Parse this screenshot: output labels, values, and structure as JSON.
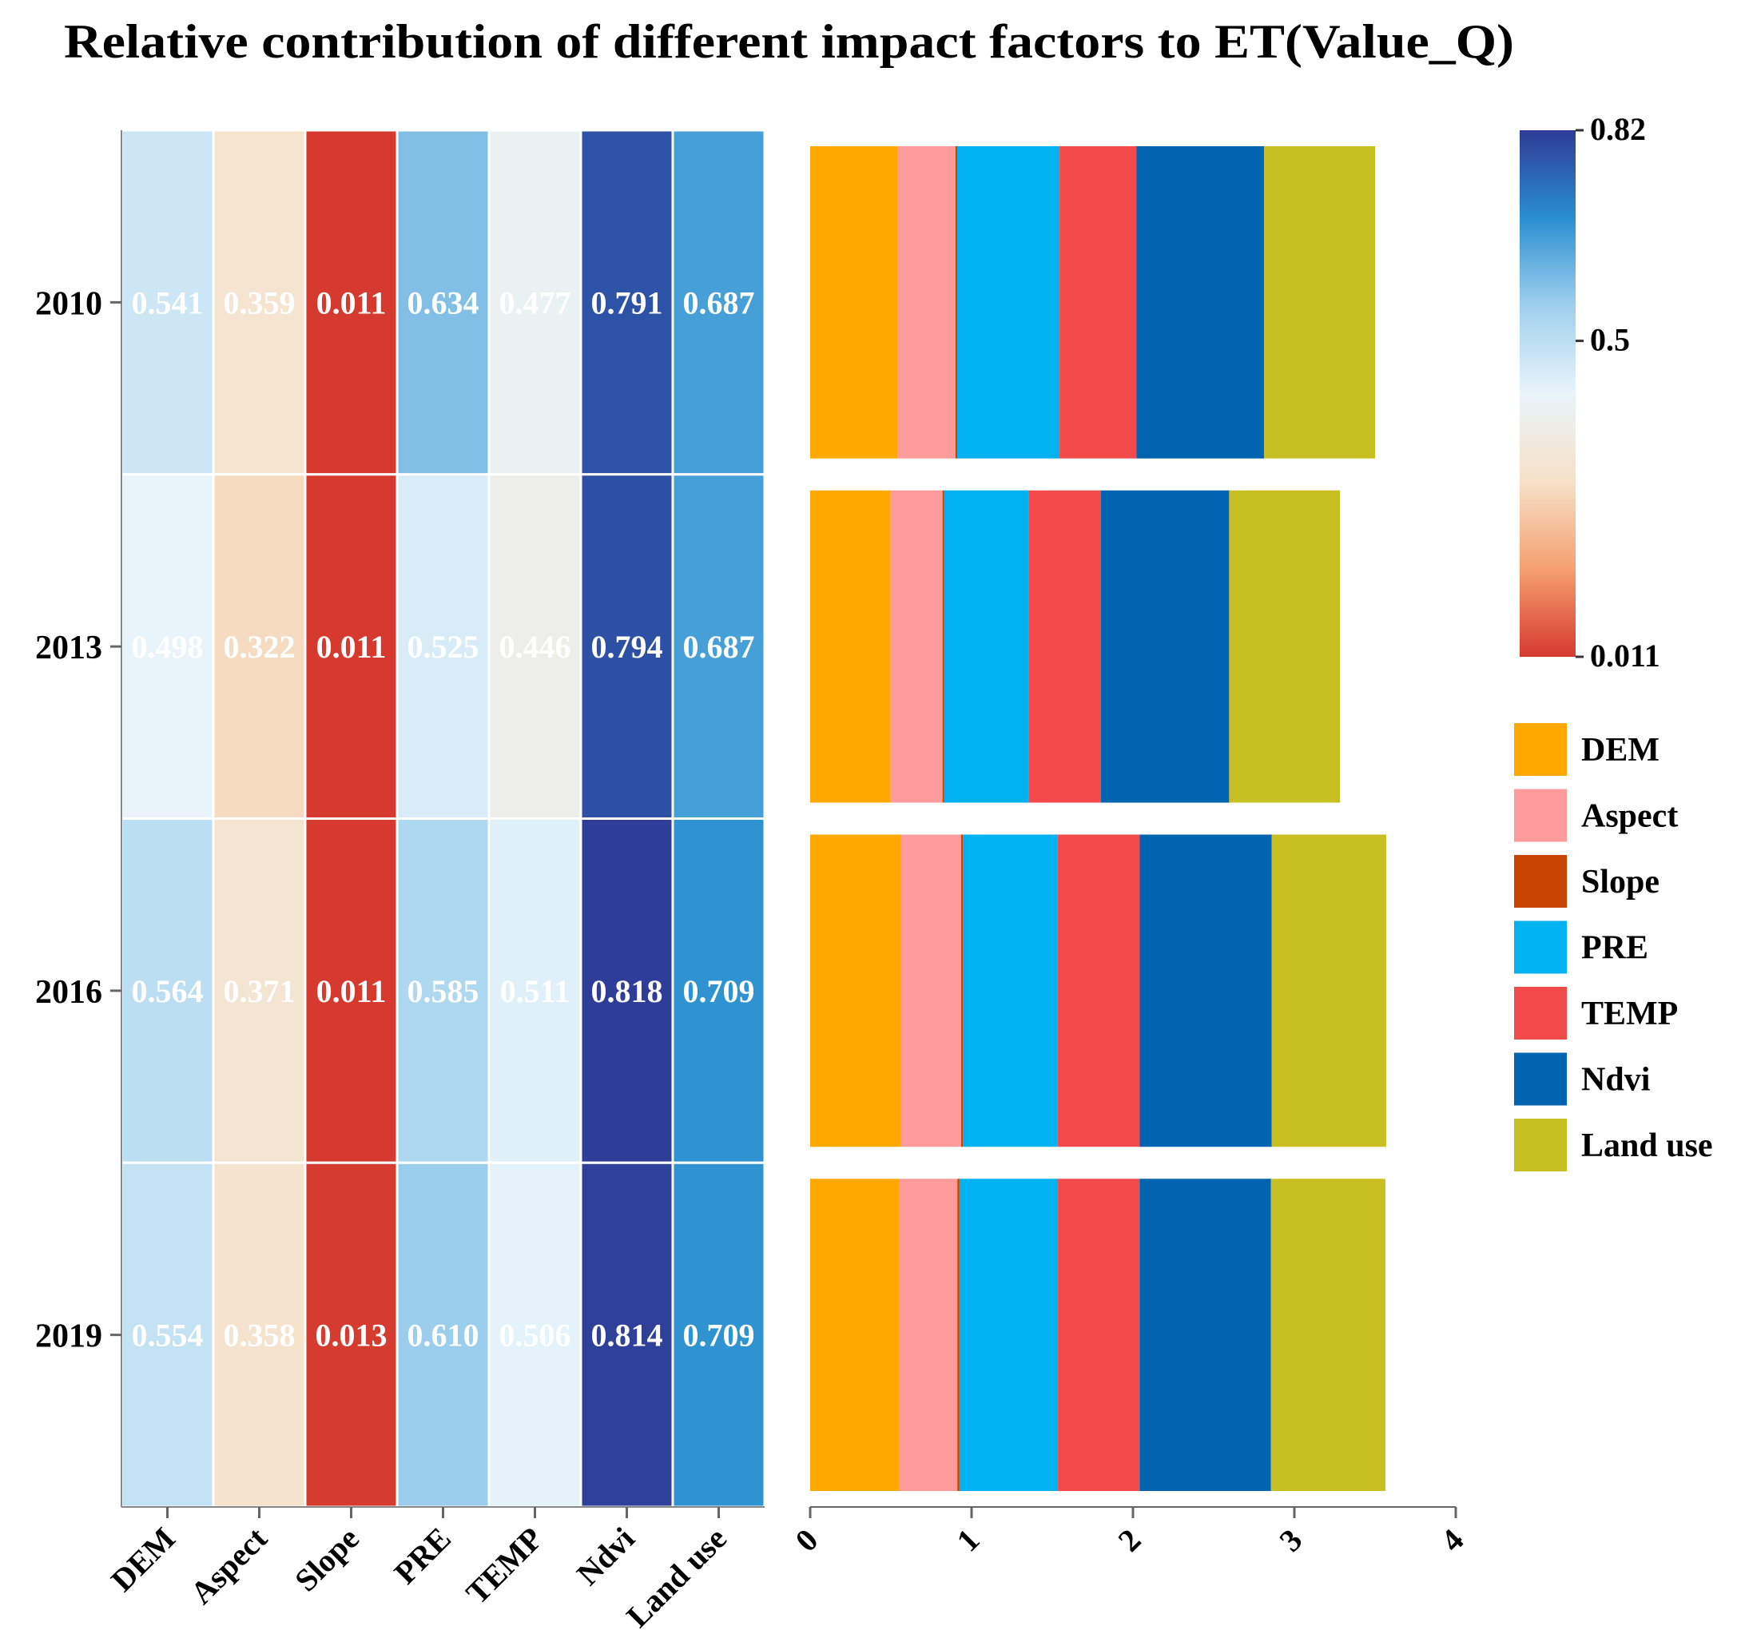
{
  "chart_data": {
    "type": "heatmap",
    "title": "Relative contribution of different impact factors to ET(Value_Q)",
    "years": [
      "2010",
      "2013",
      "2016",
      "2019"
    ],
    "factors": [
      "DEM",
      "Aspect",
      "Slope",
      "PRE",
      "TEMP",
      "Ndvi",
      "Land use"
    ],
    "heatmap_values": [
      [
        0.541,
        0.359,
        0.011,
        0.634,
        0.477,
        0.791,
        0.687
      ],
      [
        0.498,
        0.322,
        0.011,
        0.525,
        0.446,
        0.794,
        0.687
      ],
      [
        0.564,
        0.371,
        0.011,
        0.585,
        0.511,
        0.818,
        0.709
      ],
      [
        0.554,
        0.358,
        0.013,
        0.61,
        0.506,
        0.814,
        0.709
      ]
    ],
    "cell_labels": [
      [
        "0.541",
        "0.359",
        "0.011",
        "0.634",
        "0.477",
        "0.791",
        "0.687"
      ],
      [
        "0.498",
        "0.322",
        "0.011",
        "0.525",
        "0.446",
        "0.794",
        "0.687"
      ],
      [
        "0.564",
        "0.371",
        "0.011",
        "0.585",
        "0.511",
        "0.818",
        "0.709"
      ],
      [
        "0.554",
        "0.358",
        "0.013",
        "0.610",
        "0.506",
        "0.814",
        "0.709"
      ]
    ],
    "colorbar": {
      "min": 0.011,
      "mid": 0.5,
      "max": 0.82,
      "tick_labels": [
        "0.82",
        "0.5",
        "0.011"
      ],
      "colors": [
        "#d63a2f",
        "#f5a070",
        "#f7e1c8",
        "#e8f4fa",
        "#9fd0ee",
        "#2a8fd0",
        "#2e3b96"
      ]
    },
    "stacked_bar": {
      "type": "bar",
      "orientation": "horizontal",
      "stacked": true,
      "xlim": [
        0,
        4
      ],
      "xticks": [
        "0",
        "1",
        "2",
        "3",
        "4"
      ]
    },
    "legend": {
      "position": "right",
      "entries": [
        {
          "name": "DEM",
          "color": "#ffa800"
        },
        {
          "name": "Aspect",
          "color": "#ff9b9b"
        },
        {
          "name": "Slope",
          "color": "#c84400"
        },
        {
          "name": "PRE",
          "color": "#00b2f0"
        },
        {
          "name": "TEMP",
          "color": "#f34b4c"
        },
        {
          "name": "Ndvi",
          "color": "#0064b0"
        },
        {
          "name": "Land use",
          "color": "#c8c022"
        }
      ]
    }
  }
}
